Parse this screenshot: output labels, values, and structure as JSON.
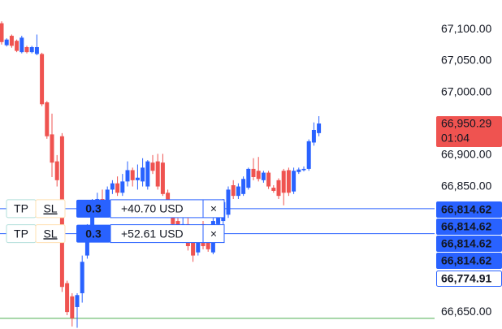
{
  "chart_data": {
    "type": "candlestick",
    "up_color": "#2962ff",
    "down_color": "#ef5350",
    "ylim": [
      66623,
      67147
    ],
    "yticks": [
      {
        "value": 67100,
        "label": "67,100.00"
      },
      {
        "value": 67050,
        "label": "67,050.00"
      },
      {
        "value": 67000,
        "label": "67,000.00"
      },
      {
        "value": 66900,
        "label": "66,900.00"
      },
      {
        "value": 66850,
        "label": "66,850.00"
      },
      {
        "value": 66650,
        "label": "66,650.00"
      }
    ],
    "open": [
      67110,
      67075,
      67090,
      67082,
      67064,
      67072,
      67064,
      67061,
      67061,
      66984,
      66933,
      66890,
      66930,
      66696,
      66675,
      66658,
      66680,
      66740,
      66770,
      66815,
      66830,
      66822,
      66845,
      66855,
      66840,
      66858,
      66876,
      66860,
      66858,
      66850,
      66888,
      66890,
      66888,
      66840,
      66810,
      66795,
      66775,
      66790,
      66765,
      66745,
      66790,
      66780,
      66745,
      66790,
      66795,
      66805,
      66852,
      66835,
      66838,
      66848,
      66878,
      66875,
      66860,
      66872,
      66848,
      66860,
      66875,
      66876,
      66842,
      66873,
      66876,
      66878,
      66920,
      66935
    ],
    "high": [
      67113,
      67086,
      67092,
      67084,
      67090,
      67074,
      67074,
      67092,
      67063,
      66986,
      66966,
      66900,
      66935,
      66700,
      66680,
      66680,
      66740,
      66790,
      66830,
      66840,
      66845,
      66850,
      66860,
      66866,
      66870,
      66890,
      66880,
      66885,
      66895,
      66892,
      66900,
      66902,
      66902,
      66845,
      66815,
      66800,
      66800,
      66800,
      66770,
      66785,
      66795,
      66785,
      66800,
      66805,
      66830,
      66850,
      66860,
      66855,
      66866,
      66880,
      66895,
      66897,
      66875,
      66875,
      66852,
      66863,
      66878,
      66880,
      66880,
      66880,
      66882,
      66925,
      66952,
      66962
    ],
    "low": [
      67076,
      67073,
      67071,
      67064,
      67062,
      67062,
      67062,
      67059,
      66978,
      66926,
      66865,
      66850,
      66682,
      66645,
      66627,
      66625,
      66665,
      66735,
      66765,
      66805,
      66815,
      66818,
      66838,
      66835,
      66835,
      66850,
      66850,
      66845,
      66850,
      66845,
      66870,
      66845,
      66835,
      66800,
      66785,
      66770,
      66760,
      66748,
      66730,
      66740,
      66750,
      66746,
      66742,
      66785,
      66790,
      66800,
      66830,
      66830,
      66835,
      66845,
      66860,
      66858,
      66856,
      66846,
      66840,
      66830,
      66820,
      66835,
      66838,
      66870,
      66874,
      66875,
      66915,
      66930
    ],
    "close": [
      67080,
      67084,
      67074,
      67066,
      67087,
      67064,
      67072,
      67072,
      66981,
      66930,
      66888,
      66860,
      66690,
      66650,
      66640,
      66677,
      66730,
      66768,
      66820,
      66830,
      66822,
      66845,
      66855,
      66840,
      66858,
      66876,
      66860,
      66864,
      66880,
      66890,
      66875,
      66850,
      66838,
      66805,
      66790,
      66780,
      66790,
      66755,
      66740,
      66780,
      66755,
      66750,
      66795,
      66800,
      66825,
      66845,
      66835,
      66850,
      66862,
      66878,
      66865,
      66862,
      66872,
      66850,
      66843,
      66835,
      66840,
      66840,
      66875,
      66877,
      66878,
      66922,
      66940,
      66950.29
    ],
    "level_line": {
      "value": 66640,
      "color": "#4caf50"
    },
    "position_lines": [
      {
        "value": 66814.62,
        "color": "#2962ff"
      },
      {
        "value": 66774.91,
        "color": "#2962ff"
      }
    ],
    "last_price": {
      "value": 66950.29,
      "label": "66,950.29",
      "timer": "01:04"
    },
    "price_labels": [
      {
        "value": 66814.62,
        "label": "66,814.62"
      },
      {
        "value": 66814.62,
        "label": "66,814.62"
      },
      {
        "value": 66814.62,
        "label": "66,814.62"
      },
      {
        "value": 66814.62,
        "label": "66,814.62"
      }
    ],
    "outline_label": {
      "value": 66774.91,
      "label": "66,774.91"
    },
    "positions": [
      {
        "tp": "TP",
        "sl": "SL",
        "qty": "0.3",
        "pnl": "+40.70 USD",
        "close": "×"
      },
      {
        "tp": "TP",
        "sl": "SL",
        "qty": "0.3",
        "pnl": "+52.61 USD",
        "close": "×"
      }
    ]
  }
}
